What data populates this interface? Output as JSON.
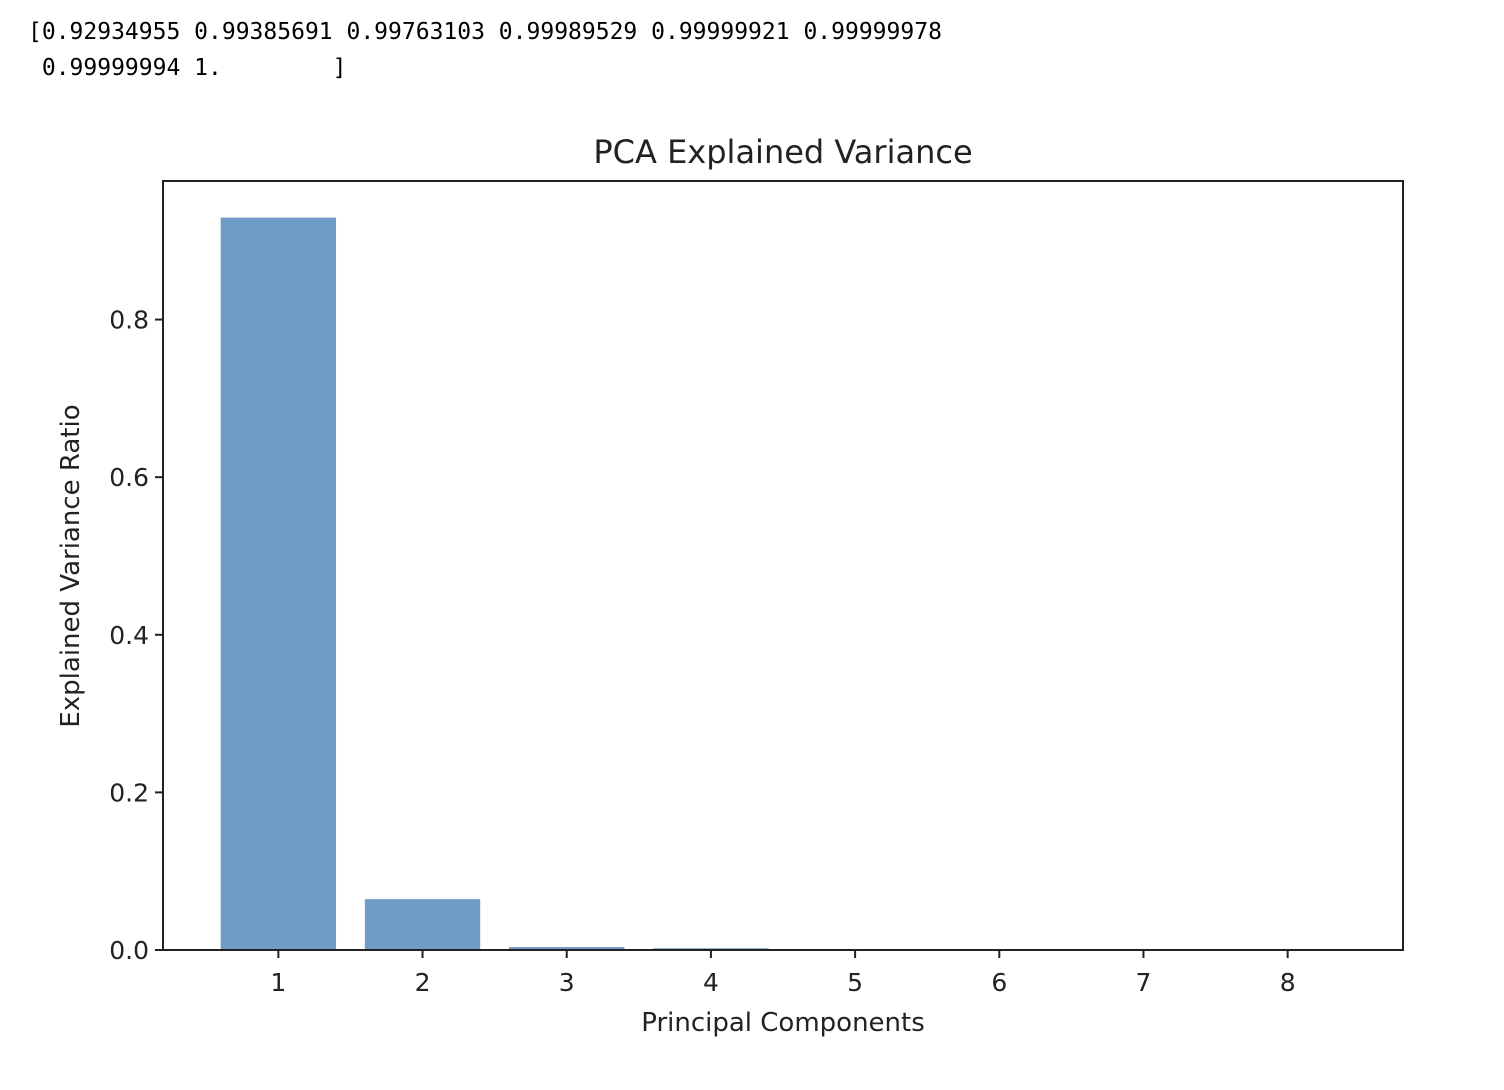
{
  "console_output": {
    "line1": "[0.92934955 0.99385691 0.99763103 0.99989529 0.99999921 0.99999978",
    "line2": " 0.99999994 1.        ]"
  },
  "colors": {
    "bar": "#6f9cc6",
    "axes": "#222222",
    "background": "#ffffff"
  },
  "chart_data": {
    "type": "bar",
    "title": "PCA Explained Variance",
    "xlabel": "Principal Components",
    "ylabel": "Explained Variance Ratio",
    "categories": [
      "1",
      "2",
      "3",
      "4",
      "5",
      "6",
      "7",
      "8"
    ],
    "values": [
      0.92934955,
      0.06450736,
      0.00377412,
      0.00226426,
      0.00010392,
      5.7e-07,
      1.6e-07,
      6e-08
    ],
    "yticks": [
      "0.0",
      "0.2",
      "0.4",
      "0.6",
      "0.8"
    ],
    "ytick_values": [
      0.0,
      0.2,
      0.4,
      0.6,
      0.8
    ],
    "ylim": [
      0,
      0.975835
    ],
    "xlim": [
      0.2,
      8.8
    ],
    "grid": false,
    "legend": "none"
  }
}
